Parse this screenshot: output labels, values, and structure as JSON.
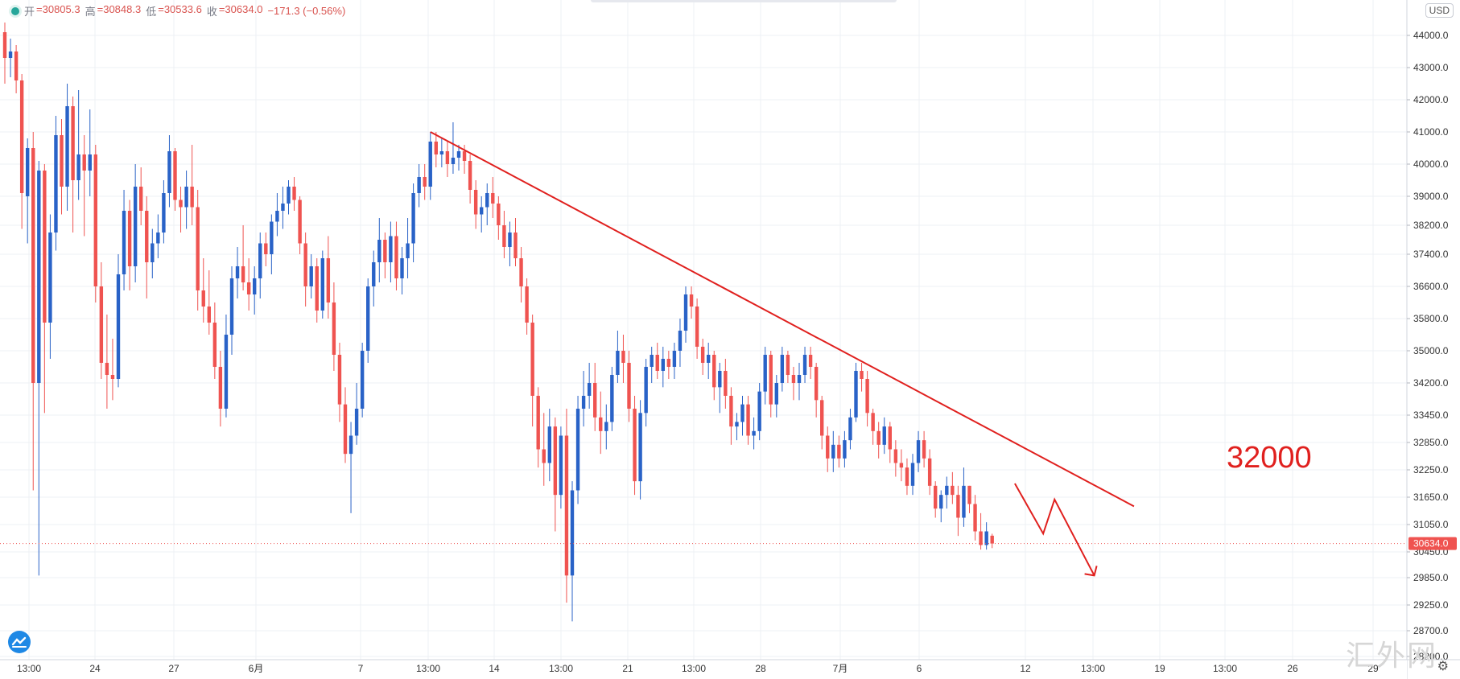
{
  "header": {
    "open_label": "开",
    "open": "=30805.3",
    "high_label": "高",
    "high": "=30848.3",
    "low_label": "低",
    "low": "=30533.6",
    "close_label": "收",
    "close": "=30634.0",
    "change": "−171.3 (−0.56%)"
  },
  "currency_badge": "USD",
  "current_price_label": "30634.0",
  "watermark": "汇外网",
  "annotation_label": "32000",
  "colors": {
    "up": "#2962c7",
    "down": "#ef5350",
    "annotation": "#e0201e",
    "grid": "#eef0f4"
  },
  "icons": {
    "status": "status-dot-icon",
    "logo": "tradingview-logo-icon",
    "settings": "gear-icon"
  },
  "chart_data": {
    "type": "candlestick",
    "yaxis": {
      "ticks": [
        {
          "value": 44000,
          "label": "44000.0"
        },
        {
          "value": 43000,
          "label": "43000.0"
        },
        {
          "value": 42000,
          "label": "42000.0"
        },
        {
          "value": 41000,
          "label": "41000.0"
        },
        {
          "value": 40000,
          "label": "40000.0"
        },
        {
          "value": 39000,
          "label": "39000.0"
        },
        {
          "value": 38200,
          "label": "38200.0"
        },
        {
          "value": 37400,
          "label": "37400.0"
        },
        {
          "value": 36600,
          "label": "36600.0"
        },
        {
          "value": 35800,
          "label": "35800.0"
        },
        {
          "value": 35000,
          "label": "35000.0"
        },
        {
          "value": 34200,
          "label": "34200.0"
        },
        {
          "value": 33450,
          "label": "33450.0"
        },
        {
          "value": 32850,
          "label": "32850.0"
        },
        {
          "value": 32250,
          "label": "32250.0"
        },
        {
          "value": 31650,
          "label": "31650.0"
        },
        {
          "value": 31050,
          "label": "31050.0"
        },
        {
          "value": 30450,
          "label": "30450.0"
        },
        {
          "value": 29850,
          "label": "29850.0"
        },
        {
          "value": 29250,
          "label": "29250.0"
        },
        {
          "value": 28700,
          "label": "28700.0"
        },
        {
          "value": 28200,
          "label": "28200.0"
        }
      ]
    },
    "xaxis": {
      "labels": [
        "13:00",
        "24",
        "27",
        "6月",
        "7",
        "13:00",
        "14",
        "13:00",
        "21",
        "13:00",
        "28",
        "7月",
        "6",
        "12",
        "13:00",
        "19",
        "13:00",
        "26",
        "29"
      ]
    },
    "current_price": 30634.0,
    "candles": [
      [
        44100,
        44400,
        42500,
        43300
      ],
      [
        43300,
        43900,
        42700,
        43500
      ],
      [
        43500,
        43700,
        42200,
        42600
      ],
      [
        42600,
        42800,
        38100,
        39100
      ],
      [
        39000,
        40800,
        37700,
        40500
      ],
      [
        40500,
        41000,
        31800,
        34200
      ],
      [
        34200,
        40100,
        29900,
        39800
      ],
      [
        39800,
        40000,
        33500,
        35700
      ],
      [
        35700,
        38500,
        34800,
        38000
      ],
      [
        38000,
        41500,
        37500,
        40900
      ],
      [
        40900,
        41400,
        38500,
        39300
      ],
      [
        39300,
        42500,
        38600,
        41800
      ],
      [
        41800,
        42100,
        38000,
        39500
      ],
      [
        39500,
        42300,
        38900,
        40300
      ],
      [
        40300,
        40900,
        37900,
        39800
      ],
      [
        39800,
        41700,
        39000,
        40300
      ],
      [
        40300,
        40600,
        36200,
        36600
      ],
      [
        36600,
        37200,
        34300,
        34700
      ],
      [
        34700,
        35900,
        33600,
        34400
      ],
      [
        34400,
        35300,
        33800,
        34300
      ],
      [
        34300,
        37400,
        34100,
        36900
      ],
      [
        36900,
        39200,
        36500,
        38600
      ],
      [
        38600,
        38900,
        36500,
        37100
      ],
      [
        37100,
        40000,
        36700,
        39300
      ],
      [
        39300,
        39900,
        38200,
        38600
      ],
      [
        38600,
        39000,
        36300,
        37200
      ],
      [
        37200,
        38100,
        36800,
        37700
      ],
      [
        37700,
        38500,
        37300,
        38000
      ],
      [
        38000,
        39500,
        37700,
        39100
      ],
      [
        39100,
        40900,
        38700,
        40400
      ],
      [
        40400,
        40500,
        38600,
        38900
      ],
      [
        38900,
        39300,
        38000,
        38700
      ],
      [
        38700,
        39800,
        38100,
        39300
      ],
      [
        39300,
        40600,
        38200,
        38700
      ],
      [
        38700,
        39200,
        36000,
        36500
      ],
      [
        36500,
        37300,
        35700,
        36100
      ],
      [
        36100,
        37000,
        35400,
        35700
      ],
      [
        35700,
        36200,
        34300,
        34600
      ],
      [
        34600,
        35000,
        33200,
        33600
      ],
      [
        33600,
        35900,
        33400,
        35400
      ],
      [
        35400,
        37100,
        34900,
        36800
      ],
      [
        36800,
        37600,
        36300,
        37100
      ],
      [
        37100,
        38200,
        36500,
        36700
      ],
      [
        36700,
        37300,
        36000,
        36400
      ],
      [
        36400,
        37100,
        35900,
        36800
      ],
      [
        36800,
        38000,
        36300,
        37700
      ],
      [
        37700,
        38000,
        37100,
        37400
      ],
      [
        37400,
        38500,
        36900,
        38300
      ],
      [
        38300,
        39100,
        37900,
        38600
      ],
      [
        38600,
        39300,
        38100,
        38800
      ],
      [
        38800,
        39500,
        38500,
        39300
      ],
      [
        39300,
        39600,
        38600,
        38900
      ],
      [
        38900,
        39000,
        37400,
        37700
      ],
      [
        37700,
        38000,
        36100,
        36600
      ],
      [
        36600,
        37400,
        36300,
        37100
      ],
      [
        37100,
        37300,
        35700,
        36000
      ],
      [
        36000,
        37500,
        35800,
        37300
      ],
      [
        37300,
        37900,
        35800,
        36200
      ],
      [
        36200,
        36700,
        34500,
        34900
      ],
      [
        34900,
        35200,
        33300,
        33700
      ],
      [
        33700,
        34100,
        32400,
        32600
      ],
      [
        32600,
        33300,
        31300,
        33000
      ],
      [
        33000,
        34200,
        32800,
        33600
      ],
      [
        33600,
        35200,
        33400,
        35000
      ],
      [
        35000,
        36800,
        34700,
        36600
      ],
      [
        36600,
        37500,
        36100,
        37200
      ],
      [
        37200,
        38400,
        36700,
        37800
      ],
      [
        37800,
        38000,
        36800,
        37200
      ],
      [
        37200,
        38300,
        36700,
        37900
      ],
      [
        37900,
        38300,
        36500,
        36800
      ],
      [
        36800,
        37600,
        36400,
        37300
      ],
      [
        37300,
        38400,
        36800,
        37700
      ],
      [
        37700,
        39400,
        37200,
        39100
      ],
      [
        39100,
        40000,
        38700,
        39600
      ],
      [
        39600,
        40000,
        38900,
        39300
      ],
      [
        39300,
        41000,
        38900,
        40700
      ],
      [
        40700,
        41000,
        39900,
        40300
      ],
      [
        40300,
        40800,
        39900,
        40400
      ],
      [
        40400,
        40700,
        39600,
        40000
      ],
      [
        40000,
        41300,
        39700,
        40200
      ],
      [
        40200,
        40600,
        39800,
        40400
      ],
      [
        40400,
        40600,
        39700,
        40100
      ],
      [
        40100,
        40300,
        38800,
        39200
      ],
      [
        39200,
        39500,
        38100,
        38500
      ],
      [
        38500,
        39000,
        38000,
        38700
      ],
      [
        38700,
        39400,
        38200,
        39100
      ],
      [
        39100,
        39600,
        38400,
        38800
      ],
      [
        38800,
        39000,
        37800,
        38200
      ],
      [
        38200,
        38600,
        37300,
        37600
      ],
      [
        37600,
        38300,
        37100,
        38000
      ],
      [
        38000,
        38400,
        37100,
        37300
      ],
      [
        37300,
        37600,
        36200,
        36600
      ],
      [
        36600,
        36800,
        35400,
        35700
      ],
      [
        35700,
        35900,
        33200,
        33900
      ],
      [
        33900,
        34100,
        32300,
        32700
      ],
      [
        32700,
        33500,
        31900,
        32400
      ],
      [
        32400,
        33600,
        32000,
        33200
      ],
      [
        33200,
        33400,
        30900,
        31700
      ],
      [
        31700,
        33200,
        31400,
        33000
      ],
      [
        33000,
        33600,
        29300,
        29900
      ],
      [
        29900,
        32000,
        28900,
        31800
      ],
      [
        31800,
        33900,
        31500,
        33600
      ],
      [
        33600,
        34500,
        33200,
        33900
      ],
      [
        33900,
        34700,
        33600,
        34200
      ],
      [
        34200,
        34700,
        33100,
        33400
      ],
      [
        33400,
        34000,
        32600,
        33100
      ],
      [
        33100,
        33700,
        32700,
        33300
      ],
      [
        33300,
        34600,
        33100,
        34400
      ],
      [
        34400,
        35500,
        34200,
        35000
      ],
      [
        35000,
        35400,
        34200,
        34700
      ],
      [
        34700,
        35000,
        33300,
        33600
      ],
      [
        33600,
        33900,
        31700,
        32000
      ],
      [
        32000,
        33800,
        31600,
        33500
      ],
      [
        33500,
        34800,
        33200,
        34600
      ],
      [
        34600,
        35100,
        34200,
        34900
      ],
      [
        34900,
        35200,
        34300,
        34500
      ],
      [
        34500,
        35100,
        34100,
        34800
      ],
      [
        34800,
        35000,
        34300,
        34600
      ],
      [
        34600,
        35200,
        34300,
        35000
      ],
      [
        35000,
        35800,
        34600,
        35500
      ],
      [
        35500,
        36600,
        35200,
        36400
      ],
      [
        36400,
        36600,
        35800,
        36100
      ],
      [
        36100,
        36300,
        34800,
        35100
      ],
      [
        35100,
        35300,
        34400,
        34700
      ],
      [
        34700,
        35200,
        34300,
        34900
      ],
      [
        34900,
        35000,
        33800,
        34100
      ],
      [
        34100,
        34700,
        33500,
        34500
      ],
      [
        34500,
        34800,
        33600,
        33900
      ],
      [
        33900,
        34100,
        32800,
        33200
      ],
      [
        33200,
        33500,
        32900,
        33300
      ],
      [
        33300,
        33900,
        33000,
        33700
      ],
      [
        33700,
        33900,
        32800,
        33000
      ],
      [
        33000,
        33400,
        32700,
        33100
      ],
      [
        33100,
        34200,
        32900,
        34000
      ],
      [
        34000,
        35100,
        33700,
        34900
      ],
      [
        34900,
        35000,
        33400,
        33700
      ],
      [
        33700,
        34400,
        33400,
        34200
      ],
      [
        34200,
        35100,
        34000,
        34900
      ],
      [
        34900,
        35000,
        34200,
        34400
      ],
      [
        34400,
        34600,
        33800,
        34200
      ],
      [
        34200,
        34700,
        33800,
        34400
      ],
      [
        34400,
        35100,
        34200,
        34900
      ],
      [
        34900,
        35100,
        34300,
        34600
      ],
      [
        34600,
        34700,
        33400,
        33800
      ],
      [
        33800,
        33900,
        32700,
        33000
      ],
      [
        33000,
        33200,
        32200,
        32500
      ],
      [
        32500,
        33100,
        32200,
        32800
      ],
      [
        32800,
        33000,
        32300,
        32500
      ],
      [
        32500,
        33100,
        32300,
        32900
      ],
      [
        32900,
        33600,
        32700,
        33400
      ],
      [
        33400,
        34700,
        33300,
        34500
      ],
      [
        34500,
        34700,
        34000,
        34300
      ],
      [
        34300,
        34500,
        33200,
        33500
      ],
      [
        33500,
        33600,
        32800,
        33100
      ],
      [
        33100,
        33300,
        32500,
        32800
      ],
      [
        32800,
        33400,
        32600,
        33200
      ],
      [
        33200,
        33300,
        32400,
        32700
      ],
      [
        32700,
        32900,
        32100,
        32400
      ],
      [
        32400,
        32700,
        32000,
        32300
      ],
      [
        32300,
        32500,
        31700,
        31900
      ],
      [
        31900,
        32600,
        31700,
        32400
      ],
      [
        32400,
        33100,
        32200,
        32900
      ],
      [
        32900,
        33100,
        32300,
        32500
      ],
      [
        32500,
        32700,
        31700,
        31900
      ],
      [
        31900,
        32000,
        31200,
        31400
      ],
      [
        31400,
        31800,
        31100,
        31700
      ],
      [
        31700,
        32100,
        31400,
        31900
      ],
      [
        31900,
        32200,
        31500,
        31700
      ],
      [
        31700,
        31900,
        30800,
        31200
      ],
      [
        31200,
        32300,
        31000,
        31900
      ],
      [
        31900,
        31900,
        31300,
        31500
      ],
      [
        31500,
        31700,
        30700,
        30900
      ],
      [
        30900,
        31300,
        30500,
        30600
      ],
      [
        30600,
        31100,
        30500,
        30900
      ],
      [
        30805,
        30848,
        30533,
        30634
      ]
    ],
    "trendline": {
      "from": {
        "index": 75,
        "value": 41000
      },
      "to": {
        "index": 199,
        "value": 31450
      }
    },
    "projection": [
      {
        "index": 178,
        "value": 31950
      },
      {
        "index": 183,
        "value": 30850
      },
      {
        "index": 185,
        "value": 31600
      },
      {
        "index": 192,
        "value": 29900
      }
    ]
  }
}
